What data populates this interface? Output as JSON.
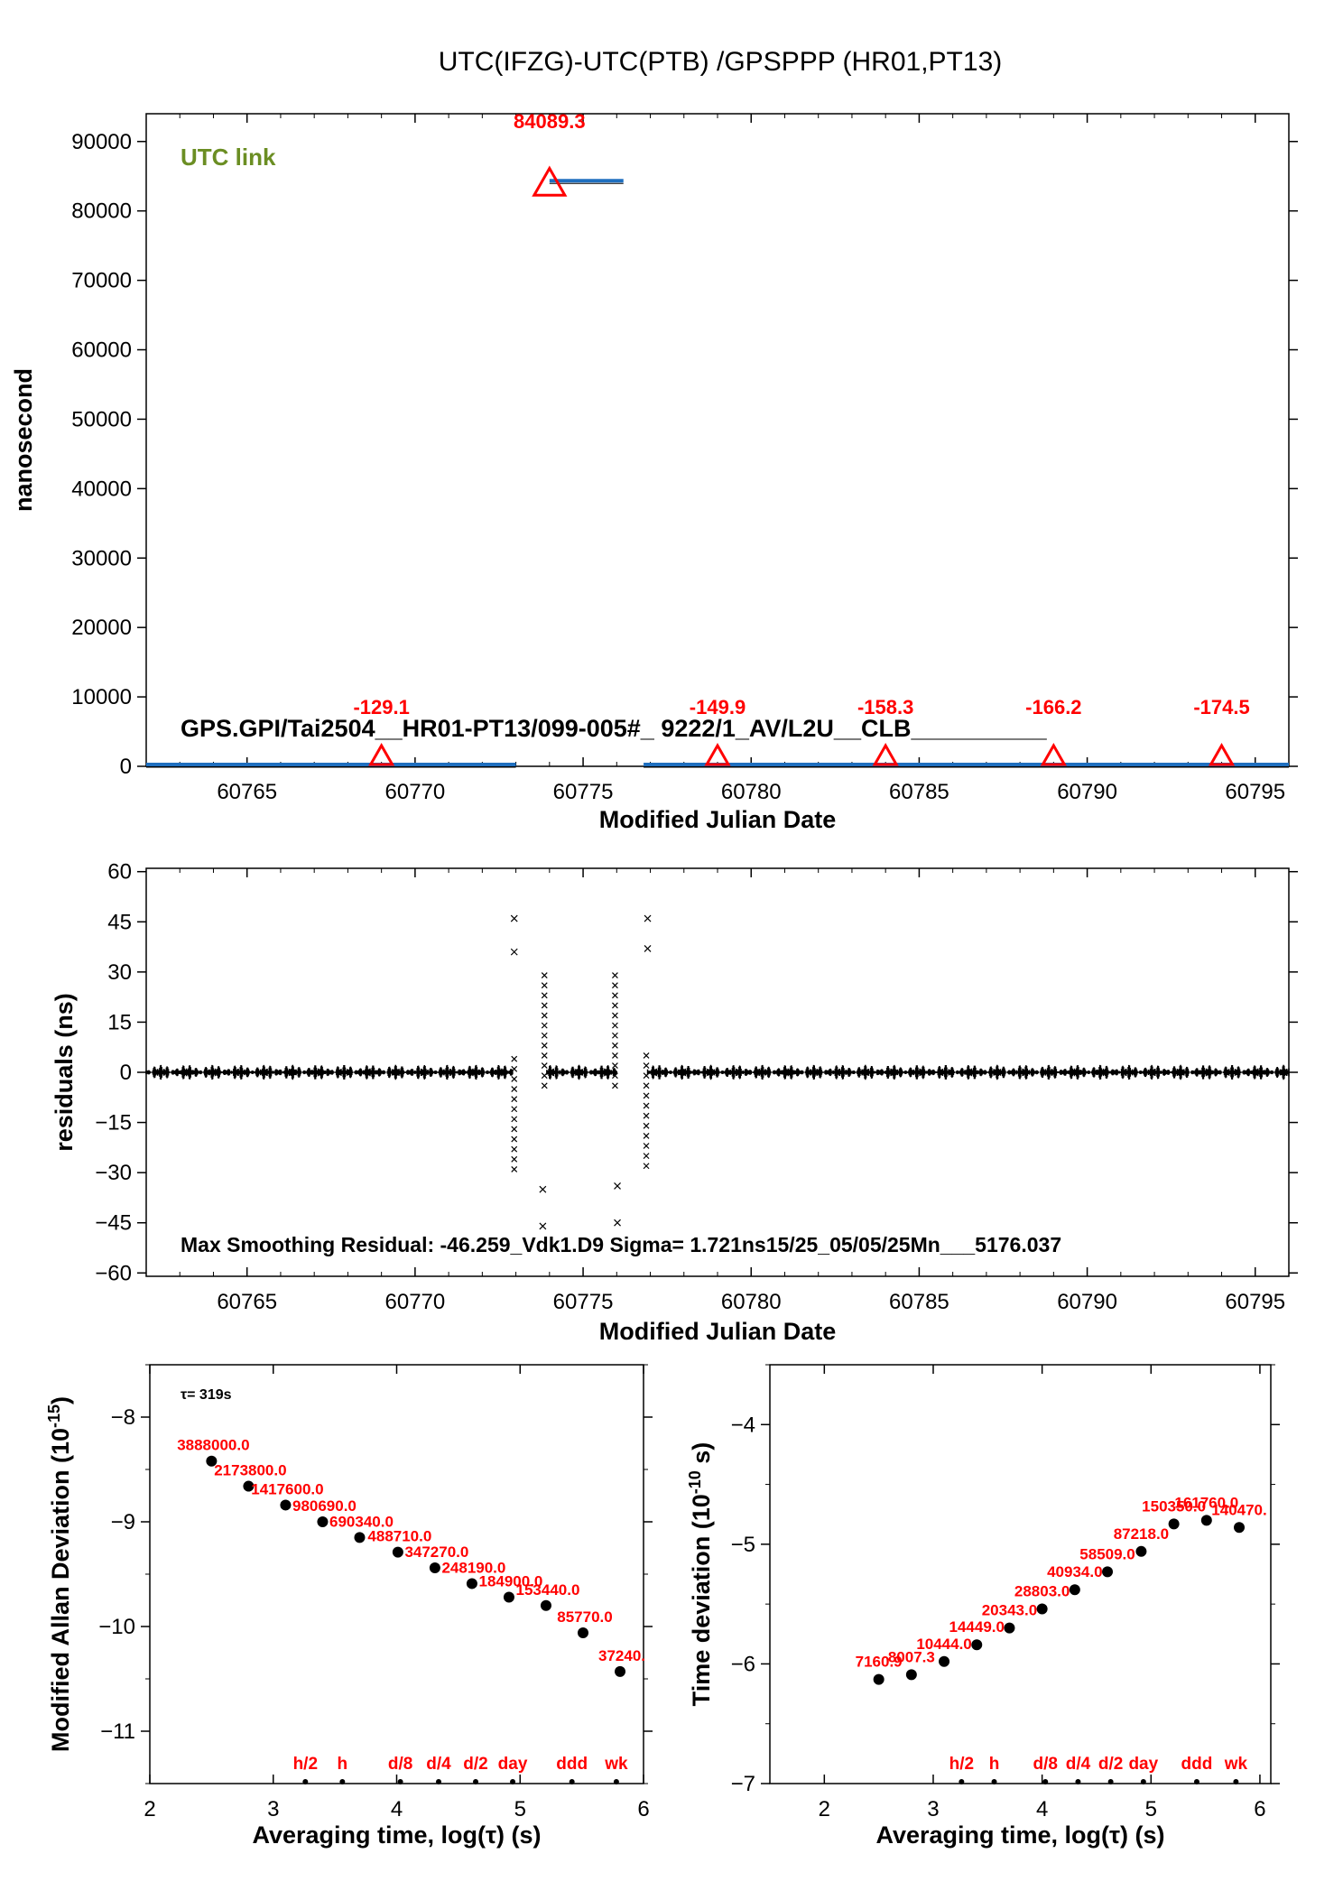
{
  "figure": {
    "title": "UTC(IFZG)-UTC(PTB)  /GPSPPP  (HR01,PT13)"
  },
  "chart_data": [
    {
      "id": "link",
      "type": "line",
      "ylabel": "nanosecond",
      "xlabel": "Modified Julian Date",
      "xlim": [
        60762,
        60796
      ],
      "ylim": [
        0,
        94000
      ],
      "xticks": [
        60765,
        60770,
        60775,
        60780,
        60785,
        60790,
        60795
      ],
      "yticks": [
        0,
        10000,
        20000,
        30000,
        40000,
        50000,
        60000,
        70000,
        80000,
        90000
      ],
      "legend": "UTC link",
      "legend_color": "#6b8e23",
      "line_color": "#1f6fbf",
      "info": "GPS.GPI/Tai2504__HR01-PT13/099-005#_  9222/1_AV/L2U__CLB__________",
      "segments": [
        {
          "x": [
            60762,
            60773
          ],
          "y": [
            0,
            0
          ]
        },
        {
          "x": [
            60774,
            60776.2
          ],
          "y": [
            84089,
            84089
          ]
        },
        {
          "x": [
            60776.8,
            60796
          ],
          "y": [
            0,
            0
          ]
        }
      ],
      "markers": [
        {
          "x": 60769,
          "y": 0,
          "label": "-129.1"
        },
        {
          "x": 60774,
          "y": 84089.3,
          "label": "84089.3"
        },
        {
          "x": 60779,
          "y": 0,
          "label": "-149.9"
        },
        {
          "x": 60784,
          "y": 0,
          "label": "-158.3"
        },
        {
          "x": 60789,
          "y": 0,
          "label": "-166.2"
        },
        {
          "x": 60794,
          "y": 0,
          "label": "-174.5"
        }
      ]
    },
    {
      "id": "residuals",
      "type": "scatter",
      "ylabel": "residuals (ns)",
      "xlabel": "Modified Julian Date",
      "xlim": [
        60762,
        60796
      ],
      "ylim": [
        -61,
        61
      ],
      "xticks": [
        60765,
        60770,
        60775,
        60780,
        60785,
        60790,
        60795
      ],
      "yticks": [
        -60,
        -45,
        -30,
        -15,
        0,
        15,
        30,
        45,
        60
      ],
      "info": "Max Smoothing Residual: -46.259_Vdk1.D9  Sigma= 1.721ns15/25_05/05/25Mn___5176.037",
      "noise_band_ns": 1.7,
      "gaps": [
        [
          60772.9,
          60773.9
        ],
        [
          60776.0,
          60776.9
        ]
      ],
      "bursts": [
        {
          "x": 60772.95,
          "ymin": -29,
          "ymax": 6
        },
        {
          "x": 60773.85,
          "ymin": -4,
          "ymax": 30
        },
        {
          "x": 60775.95,
          "ymin": -4,
          "ymax": 30
        },
        {
          "x": 60776.88,
          "ymin": -28,
          "ymax": 6
        }
      ],
      "outliers": [
        {
          "x": 60772.95,
          "y": 46
        },
        {
          "x": 60772.95,
          "y": 36
        },
        {
          "x": 60773.8,
          "y": -35
        },
        {
          "x": 60773.8,
          "y": -46
        },
        {
          "x": 60776.02,
          "y": -34
        },
        {
          "x": 60776.02,
          "y": -45
        },
        {
          "x": 60776.92,
          "y": 46
        },
        {
          "x": 60776.92,
          "y": 37
        }
      ]
    },
    {
      "id": "mdev",
      "type": "scatter",
      "ylabel": "Modified Allan Deviation (10",
      "ylabel_exp": "-15",
      "ylabel_end": ")",
      "xlabel": "Averaging time, log(τ) (s)",
      "xlim": [
        2,
        6
      ],
      "ylim": [
        -11.5,
        -7.5
      ],
      "xticks": [
        2,
        3,
        4,
        5,
        6
      ],
      "yticks": [
        -8,
        -9,
        -10,
        -11
      ],
      "note": "τ= 319s",
      "points": [
        {
          "x": 2.5,
          "y": -8.42,
          "label": "3888000.0"
        },
        {
          "x": 2.8,
          "y": -8.66,
          "label": "2173800.0"
        },
        {
          "x": 3.1,
          "y": -8.84,
          "label": "1417600.0"
        },
        {
          "x": 3.4,
          "y": -9.0,
          "label": "980690.0"
        },
        {
          "x": 3.7,
          "y": -9.15,
          "label": "690340.0"
        },
        {
          "x": 4.01,
          "y": -9.29,
          "label": "488710.0"
        },
        {
          "x": 4.31,
          "y": -9.44,
          "label": "347270.0"
        },
        {
          "x": 4.61,
          "y": -9.59,
          "label": "248190.0"
        },
        {
          "x": 4.91,
          "y": -9.72,
          "label": "184900.0"
        },
        {
          "x": 5.21,
          "y": -9.8,
          "label": "153440.0"
        },
        {
          "x": 5.51,
          "y": -10.06,
          "label": "85770.0"
        },
        {
          "x": 5.81,
          "y": -10.43,
          "label": "37240."
        }
      ],
      "markers": [
        {
          "x": 3.26,
          "label": "h/2"
        },
        {
          "x": 3.56,
          "label": "h"
        },
        {
          "x": 4.03,
          "label": "d/8"
        },
        {
          "x": 4.34,
          "label": "d/4"
        },
        {
          "x": 4.64,
          "label": "d/2"
        },
        {
          "x": 4.94,
          "label": "day"
        },
        {
          "x": 5.42,
          "label": "ddd"
        },
        {
          "x": 5.78,
          "label": "wk"
        }
      ]
    },
    {
      "id": "tdev",
      "type": "scatter",
      "ylabel": "Time deviation (10",
      "ylabel_exp": "-10",
      "ylabel_end": " s)",
      "xlabel": "Averaging time, log(τ) (s)",
      "xlim": [
        1.5,
        6.1
      ],
      "ylim": [
        -7,
        -3.5
      ],
      "xticks": [
        2,
        3,
        4,
        5,
        6
      ],
      "yticks": [
        -4,
        -5,
        -6,
        -7
      ],
      "points": [
        {
          "x": 2.5,
          "y": -6.13,
          "label": "7160.9"
        },
        {
          "x": 2.8,
          "y": -6.09,
          "label": "8007.3"
        },
        {
          "x": 3.1,
          "y": -5.98,
          "label": "10444.0"
        },
        {
          "x": 3.4,
          "y": -5.84,
          "label": "14449.0"
        },
        {
          "x": 3.7,
          "y": -5.7,
          "label": "20343.0"
        },
        {
          "x": 4.0,
          "y": -5.54,
          "label": "28803.0"
        },
        {
          "x": 4.3,
          "y": -5.38,
          "label": "40934.0"
        },
        {
          "x": 4.6,
          "y": -5.23,
          "label": "58509.0"
        },
        {
          "x": 4.91,
          "y": -5.06,
          "label": "87218.0"
        },
        {
          "x": 5.21,
          "y": -4.83,
          "label": "150350.0"
        },
        {
          "x": 5.51,
          "y": -4.8,
          "label": "161760.0"
        },
        {
          "x": 5.81,
          "y": -4.86,
          "label": "140470."
        }
      ],
      "markers": [
        {
          "x": 3.26,
          "label": "h/2"
        },
        {
          "x": 3.56,
          "label": "h"
        },
        {
          "x": 4.03,
          "label": "d/8"
        },
        {
          "x": 4.33,
          "label": "d/4"
        },
        {
          "x": 4.63,
          "label": "d/2"
        },
        {
          "x": 4.93,
          "label": "day"
        },
        {
          "x": 5.42,
          "label": "ddd"
        },
        {
          "x": 5.78,
          "label": "wk"
        }
      ]
    }
  ]
}
